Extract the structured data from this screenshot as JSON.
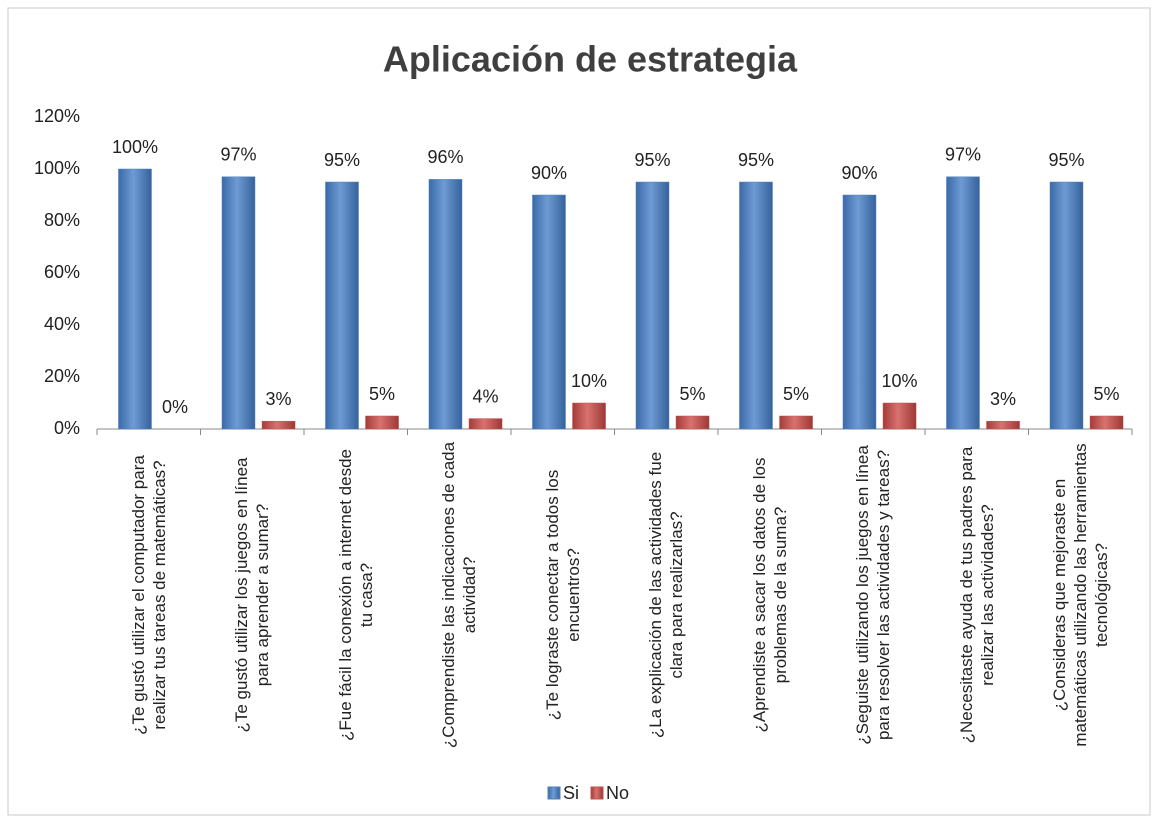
{
  "chart_data": {
    "type": "bar",
    "title": "Aplicación de estrategia",
    "categories": [
      "¿Te gustó utilizar el computador para realizar tus tareas de matemáticas?",
      "¿Te gustó utilizar los juegos en línea para aprender a sumar?",
      "¿Fue fácil la conexión a internet desde tu casa?",
      "¿Comprendiste las indicaciones de cada actividad?",
      "¿Te lograste conectar a todos los encuentros?",
      "¿La explicación de las actividades fue clara para realizarlas?",
      "¿Aprendiste a sacar los datos de los problemas de la suma?",
      "¿Seguiste utilizando los juegos en línea para resolver las actividades y tareas?",
      "¿Necesitaste ayuda de tus padres para realizar las actividades?",
      "¿Consideras que mejoraste en matemáticas utilizando las herramientas tecnológicas?"
    ],
    "series": [
      {
        "name": "Si",
        "color": "#4f81bd",
        "values": [
          100,
          97,
          95,
          96,
          90,
          95,
          95,
          90,
          97,
          95
        ],
        "value_labels": [
          "100%",
          "97%",
          "95%",
          "96%",
          "90%",
          "95%",
          "95%",
          "90%",
          "97%",
          "95%"
        ]
      },
      {
        "name": "No",
        "color": "#c0504d",
        "values": [
          0,
          3,
          5,
          4,
          10,
          5,
          5,
          10,
          3,
          5
        ],
        "value_labels": [
          "0%",
          "3%",
          "5%",
          "4%",
          "10%",
          "5%",
          "5%",
          "10%",
          "3%",
          "5%"
        ]
      }
    ],
    "ylim": [
      0,
      120
    ],
    "yticks": [
      {
        "value": 0,
        "label": "0%"
      },
      {
        "value": 20,
        "label": "20%"
      },
      {
        "value": 40,
        "label": "40%"
      },
      {
        "value": 60,
        "label": "60%"
      },
      {
        "value": 80,
        "label": "80%"
      },
      {
        "value": 100,
        "label": "100%"
      },
      {
        "value": 120,
        "label": "120%"
      }
    ],
    "grid": false,
    "legend": "bottom"
  }
}
